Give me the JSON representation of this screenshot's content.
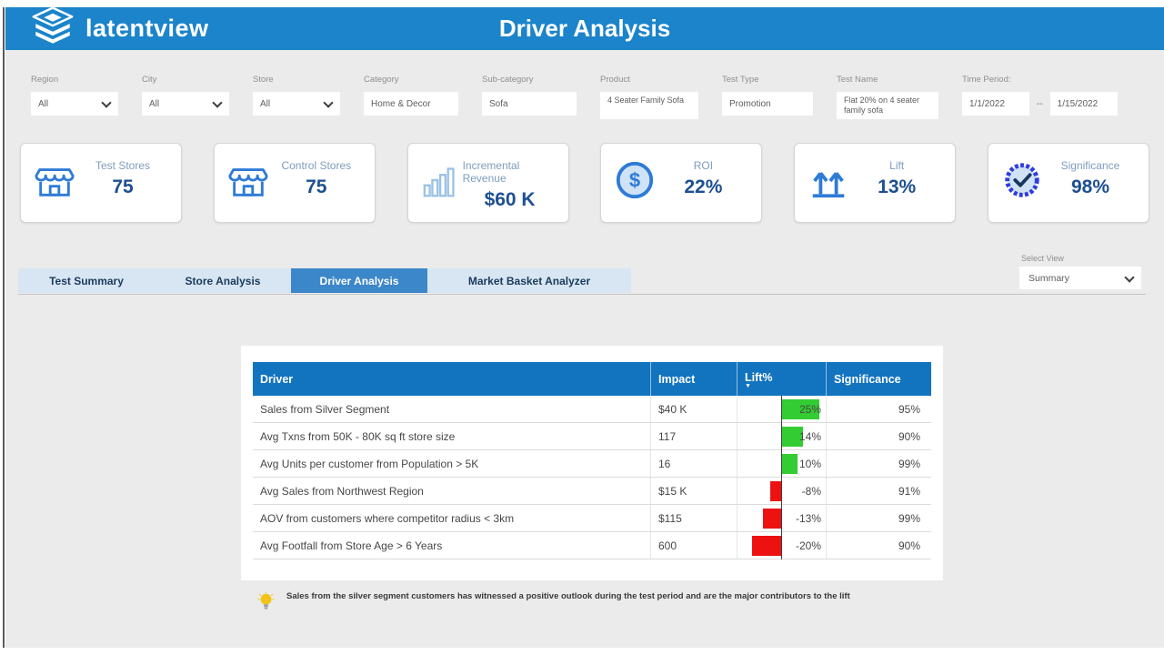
{
  "header": {
    "brand": "latentview",
    "title": "Driver Analysis"
  },
  "filters": [
    {
      "label": "Region",
      "value": "All",
      "dropdown": true
    },
    {
      "label": "City",
      "value": "All",
      "dropdown": true
    },
    {
      "label": "Store",
      "value": "All",
      "dropdown": true
    },
    {
      "label": "Category",
      "value": "Home & Decor",
      "dropdown": false
    },
    {
      "label": "Sub-category",
      "value": "Sofa",
      "dropdown": false
    },
    {
      "label": "Product",
      "value": "4 Seater Family Sofa",
      "dropdown": false
    },
    {
      "label": "Test Type",
      "value": "Promotion",
      "dropdown": false
    },
    {
      "label": "Test Name",
      "value": "Flat 20% on 4 seater family sofa",
      "dropdown": false
    }
  ],
  "time_period": {
    "label": "Time Period:",
    "from": "1/1/2022",
    "separator": "--",
    "to": "1/15/2022"
  },
  "kpis": [
    {
      "label": "Test Stores",
      "value": "75",
      "icon": "store-icon"
    },
    {
      "label": "Control Stores",
      "value": "75",
      "icon": "store-icon"
    },
    {
      "label": "Incremental Revenue",
      "value": "$60 K",
      "icon": "bar-chart-icon"
    },
    {
      "label": "ROI",
      "value": "22%",
      "icon": "dollar-coin-icon"
    },
    {
      "label": "Lift",
      "value": "13%",
      "icon": "lift-arrows-icon"
    },
    {
      "label": "Significance",
      "value": "98%",
      "icon": "badge-check-icon"
    }
  ],
  "tabs": [
    {
      "label": "Test Summary",
      "active": false
    },
    {
      "label": "Store Analysis",
      "active": false
    },
    {
      "label": "Driver Analysis",
      "active": true
    },
    {
      "label": "Market Basket Analyzer",
      "active": false
    }
  ],
  "view_selector": {
    "label": "Select View",
    "value": "Summary"
  },
  "chart_data": {
    "type": "table",
    "title": "Driver Analysis",
    "columns": [
      "Driver",
      "Impact",
      "Lift%",
      "Significance"
    ],
    "sorted_by": "Lift% descending",
    "lift_axis_pct": 0,
    "rows": [
      {
        "driver": "Sales from Silver Segment",
        "impact": "$40 K",
        "lift_pct": 25,
        "lift_label": "25%",
        "significance": "95%"
      },
      {
        "driver": "Avg Txns from 50K - 80K sq ft store size",
        "impact": "117",
        "lift_pct": 14,
        "lift_label": "14%",
        "significance": "90%"
      },
      {
        "driver": "Avg Units per customer from Population > 5K",
        "impact": "16",
        "lift_pct": 10,
        "lift_label": "10%",
        "significance": "99%"
      },
      {
        "driver": "Avg Sales from Northwest Region",
        "impact": "$15 K",
        "lift_pct": -8,
        "lift_label": "-8%",
        "significance": "91%"
      },
      {
        "driver": "AOV from customers where competitor radius < 3km",
        "impact": "$115",
        "lift_pct": -13,
        "lift_label": "-13%",
        "significance": "99%"
      },
      {
        "driver": "Avg Footfall from Store Age > 6 Years",
        "impact": "600",
        "lift_pct": -20,
        "lift_label": "-20%",
        "significance": "90%"
      }
    ]
  },
  "insight": {
    "icon": "lightbulb-icon",
    "text": "Sales from the silver segment customers has witnessed a positive outlook during the test period and are the major contributors to the lift"
  },
  "colors": {
    "header_blue": "#1b84ca",
    "table_header_blue": "#1273bf",
    "active_tab_blue": "#3c87c9",
    "tab_bar_bg": "#d8e6f3",
    "positive_bar": "#33cc33",
    "negative_bar": "#ee1111",
    "kpi_value": "#1d4f91",
    "kpi_label": "#7f9cbe",
    "icon_blue": "#2e7bd6"
  }
}
